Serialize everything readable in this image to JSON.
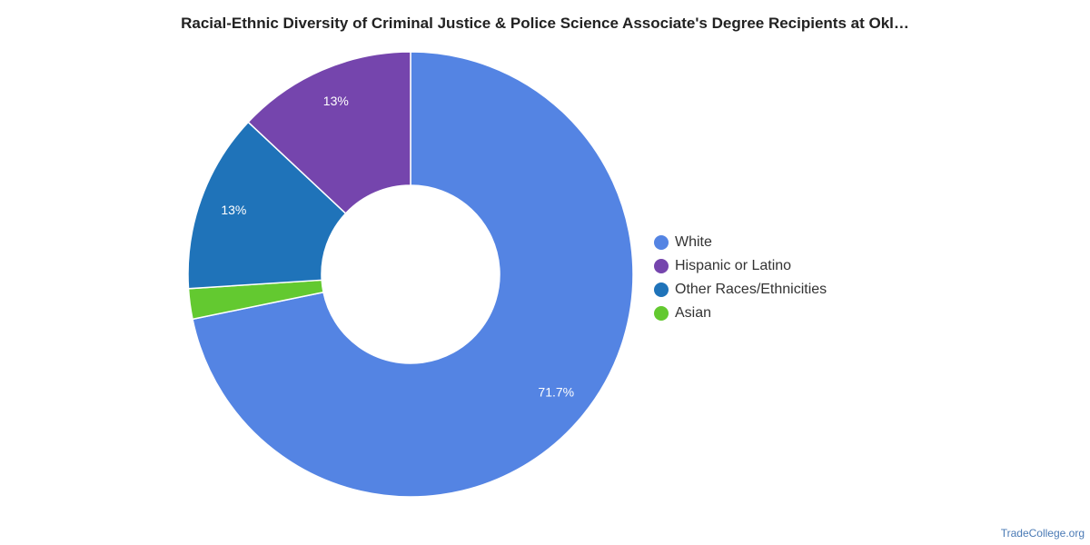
{
  "chart_data": {
    "type": "pie",
    "style": "donut",
    "title": "Racial-Ethnic Diversity of Criminal Justice & Police Science Associate's Degree Recipients at Okl…",
    "slices": [
      {
        "label": "White",
        "value": 71.7,
        "display": "71.7%",
        "color": "#5484e3"
      },
      {
        "label": "Asian",
        "value": 2.2,
        "display": "",
        "color": "#63c930"
      },
      {
        "label": "Other Races/Ethnicities",
        "value": 13,
        "display": "13%",
        "color": "#1f73b9"
      },
      {
        "label": "Hispanic or Latino",
        "value": 13,
        "display": "13%",
        "color": "#7545ad"
      }
    ],
    "legend": {
      "placement": "right",
      "items": [
        {
          "label": "White",
          "color": "#5484e3"
        },
        {
          "label": "Hispanic or Latino",
          "color": "#7545ad"
        },
        {
          "label": "Other Races/Ethnicities",
          "color": "#1f73b9"
        },
        {
          "label": "Asian",
          "color": "#63c930"
        }
      ]
    }
  },
  "credit": "TradeCollege.org"
}
